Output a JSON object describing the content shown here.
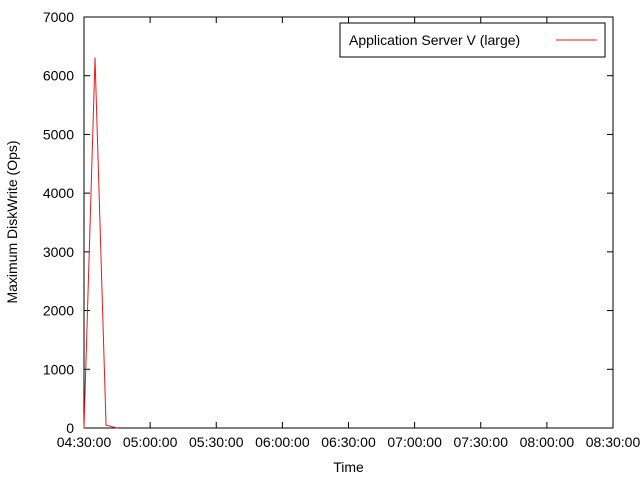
{
  "chart_data": {
    "type": "line",
    "xlabel": "Time",
    "ylabel": "Maximum DiskWrite (Ops)",
    "ylim": [
      0,
      7000
    ],
    "yticks": [
      0,
      1000,
      2000,
      3000,
      4000,
      5000,
      6000,
      7000
    ],
    "xlim": [
      "04:30:00",
      "08:30:00"
    ],
    "xticks": [
      "04:30:00",
      "05:00:00",
      "05:30:00",
      "06:00:00",
      "06:30:00",
      "07:00:00",
      "07:30:00",
      "08:00:00",
      "08:30:00"
    ],
    "grid": false,
    "legend_position": "top-right",
    "series": [
      {
        "name": "Application Server V (large)",
        "color": "#e41a1c",
        "x": [
          "04:30:00",
          "04:35:00",
          "04:40:00",
          "04:45:00"
        ],
        "y": [
          0,
          6300,
          50,
          0
        ]
      }
    ]
  }
}
